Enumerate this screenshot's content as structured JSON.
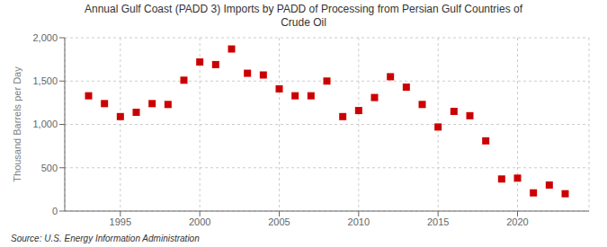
{
  "chart_data": {
    "type": "scatter",
    "title": "Annual Gulf Coast (PADD 3) Imports by PADD of Processing from Persian Gulf Countries of\nCrude Oil",
    "y_label": "Thousand Barrels per Day",
    "annotations": [
      "Source: U.S. Energy Information Administration"
    ],
    "x": [
      1993,
      1994,
      1995,
      1996,
      1997,
      1998,
      1999,
      2000,
      2001,
      2002,
      2003,
      2004,
      2005,
      2006,
      2007,
      2008,
      2009,
      2010,
      2011,
      2012,
      2013,
      2014,
      2015,
      2016,
      2017,
      2018,
      2019,
      2020,
      2021,
      2022,
      2023
    ],
    "values": [
      1330,
      1240,
      1090,
      1140,
      1240,
      1230,
      1510,
      1720,
      1690,
      1870,
      1590,
      1570,
      1410,
      1330,
      1330,
      1500,
      1090,
      1160,
      1310,
      1550,
      1430,
      1230,
      970,
      1150,
      1100,
      810,
      370,
      380,
      210,
      300,
      200
    ],
    "color": "#cc0000",
    "marker": "square",
    "xlim": [
      1991.5,
      2024.5
    ],
    "xticks": [
      1995,
      2000,
      2005,
      2010,
      2015,
      2020
    ],
    "ylim": [
      0,
      2000
    ],
    "yticks": [
      0,
      500,
      {
        "value": 1000,
        "label": "1,000"
      },
      {
        "value": 1500,
        "label": "1,500"
      },
      {
        "value": 2000,
        "label": "2,000"
      }
    ],
    "grid": true
  }
}
